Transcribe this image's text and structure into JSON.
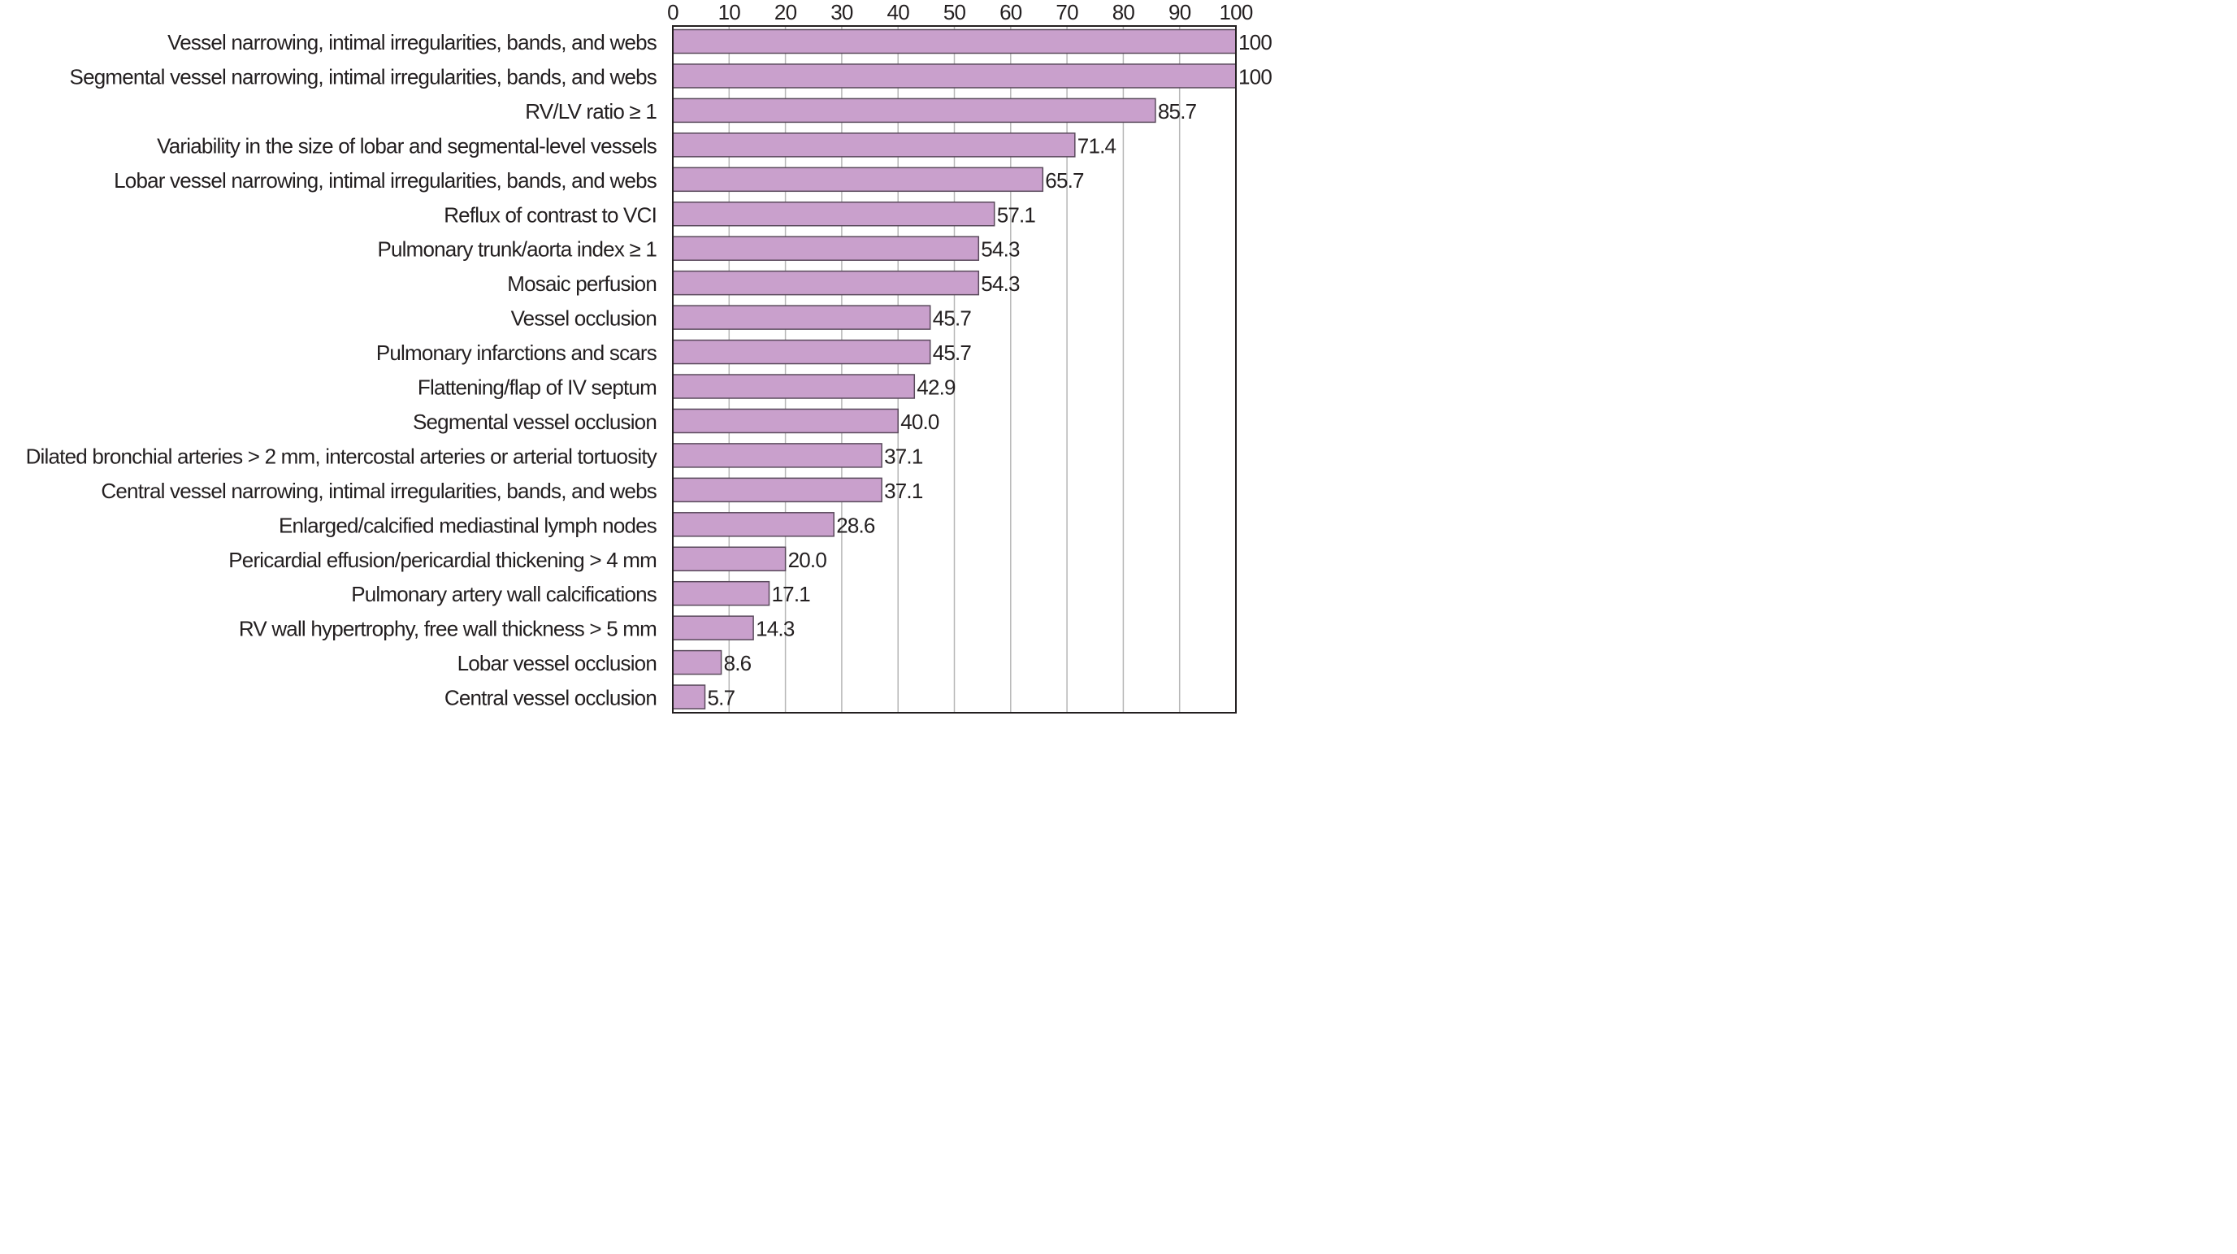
{
  "colors": {
    "bar_fill": "#c9a0cc",
    "bar_stroke": "#5a4a5c",
    "grid": "#b7b7b7",
    "frame": "#231f20",
    "text": "#231f20"
  },
  "chart_data": {
    "type": "bar",
    "orientation": "horizontal",
    "categories": [
      "Vessel narrowing, intimal irregularities, bands, and webs",
      "Segmental vessel narrowing, intimal irregularities, bands, and webs",
      "RV/LV ratio ≥ 1",
      "Variability in the size of lobar and segmental-level vessels",
      "Lobar vessel narrowing, intimal irregularities, bands, and webs",
      "Reflux of contrast to VCI",
      "Pulmonary trunk/aorta index ≥ 1",
      "Mosaic perfusion",
      "Vessel occlusion",
      "Pulmonary infarctions and scars",
      "Flattening/flap of IV septum",
      "Segmental vessel occlusion",
      "Dilated bronchial arteries > 2 mm, intercostal arteries or arterial tortuosity",
      "Central vessel narrowing, intimal irregularities, bands, and webs",
      "Enlarged/calcified mediastinal lymph nodes",
      "Pericardial effusion/pericardial thickening > 4 mm",
      "Pulmonary artery wall calcifications",
      "RV wall hypertrophy, free wall thickness > 5 mm",
      "Lobar vessel occlusion",
      "Central vessel occlusion"
    ],
    "values": [
      100,
      100,
      85.7,
      71.4,
      65.7,
      57.1,
      54.3,
      54.3,
      45.7,
      45.7,
      42.9,
      40.0,
      37.1,
      37.1,
      28.6,
      20.0,
      17.1,
      14.3,
      8.6,
      5.7
    ],
    "value_labels": [
      "100",
      "100",
      "85.7",
      "71.4",
      "65.7",
      "57.1",
      "54.3",
      "54.3",
      "45.7",
      "45.7",
      "42.9",
      "40.0",
      "37.1",
      "37.1",
      "28.6",
      "20.0",
      "17.1",
      "14.3",
      "8.6",
      "5.7"
    ],
    "x_ticks": [
      0,
      10,
      20,
      30,
      40,
      50,
      60,
      70,
      80,
      90,
      100
    ],
    "xlim": [
      0,
      100
    ],
    "x_axis_position": "top",
    "grid": true,
    "title": "",
    "xlabel": "",
    "ylabel": ""
  }
}
